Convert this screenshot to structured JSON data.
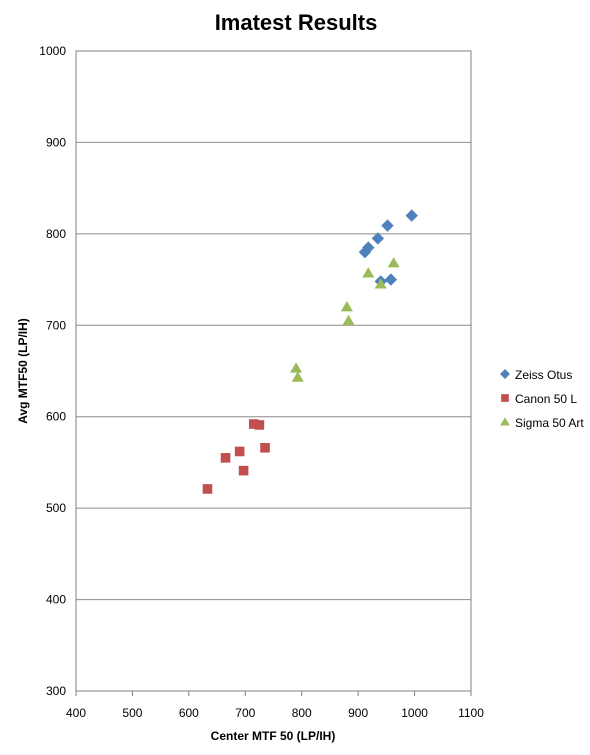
{
  "chart_data": {
    "type": "scatter",
    "title": "Imatest Results",
    "xlabel": "Center MTF 50 (LP/IH)",
    "ylabel": "Avg MTF50 (LP/IH)",
    "xlim": [
      400,
      1100
    ],
    "ylim": [
      300,
      1000
    ],
    "xticks": [
      400,
      500,
      600,
      700,
      800,
      900,
      1000,
      1100
    ],
    "yticks": [
      300,
      400,
      500,
      600,
      700,
      800,
      900,
      1000
    ],
    "grid": "horizontal",
    "legend": "right",
    "series": [
      {
        "name": "Zeiss Otus",
        "marker": "diamond",
        "color": "#4f81bd",
        "points": [
          [
            995,
            820
          ],
          [
            952,
            809
          ],
          [
            935,
            795
          ],
          [
            918,
            785
          ],
          [
            912,
            780
          ],
          [
            958,
            750
          ],
          [
            940,
            748
          ]
        ]
      },
      {
        "name": "Canon 50 L",
        "marker": "square",
        "color": "#c0504d",
        "points": [
          [
            715,
            592
          ],
          [
            725,
            591
          ],
          [
            735,
            566
          ],
          [
            690,
            562
          ],
          [
            665,
            555
          ],
          [
            697,
            541
          ],
          [
            633,
            521
          ]
        ]
      },
      {
        "name": "Sigma 50 Art",
        "marker": "triangle",
        "color": "#9bbb59",
        "points": [
          [
            963,
            768
          ],
          [
            918,
            757
          ],
          [
            940,
            745
          ],
          [
            880,
            720
          ],
          [
            883,
            705
          ],
          [
            790,
            653
          ],
          [
            793,
            643
          ]
        ]
      }
    ]
  }
}
